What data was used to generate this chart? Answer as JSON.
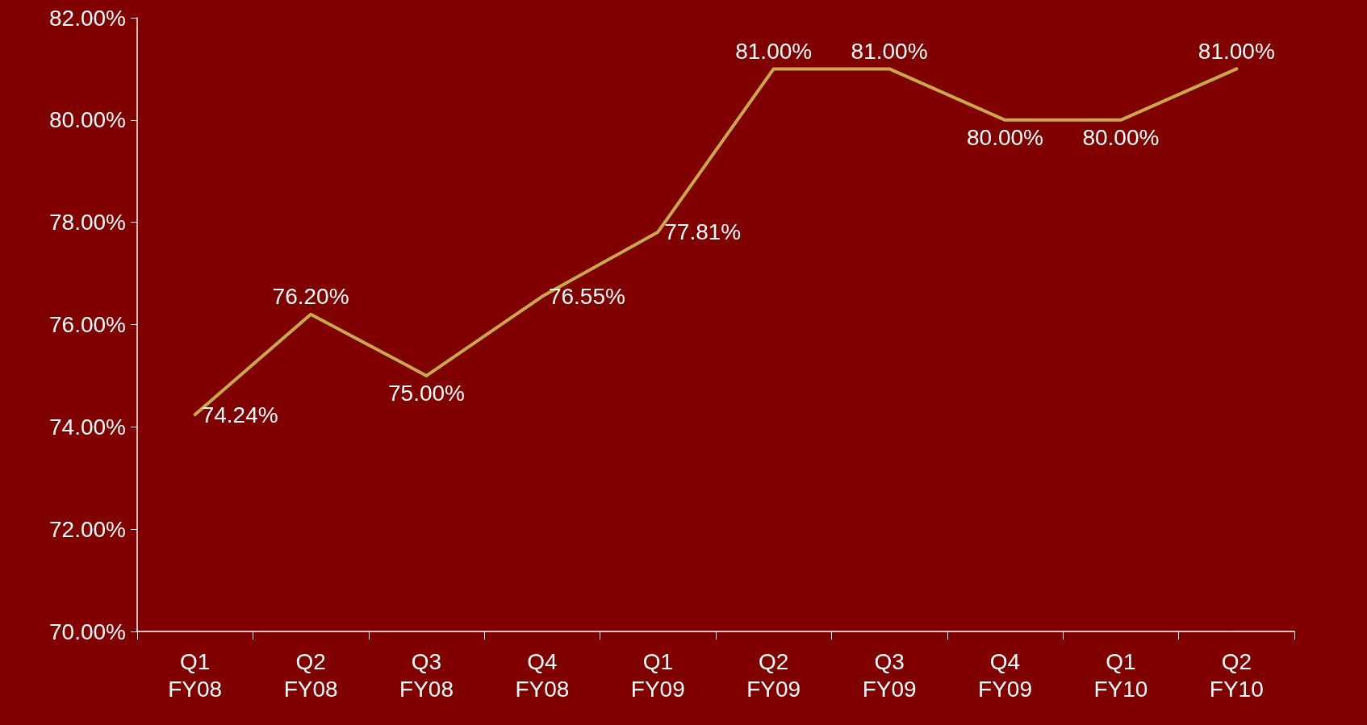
{
  "chart_data": {
    "type": "line",
    "categories": [
      "Q1\nFY08",
      "Q2\nFY08",
      "Q3\nFY08",
      "Q4\nFY08",
      "Q1\nFY09",
      "Q2\nFY09",
      "Q3\nFY09",
      "Q4\nFY09",
      "Q1\nFY10",
      "Q2\nFY10"
    ],
    "series": [
      {
        "color": "#c9a94a",
        "values": [
          74.24,
          76.2,
          75.0,
          76.55,
          77.81,
          81.0,
          81.0,
          80.0,
          80.0,
          81.0
        ],
        "value_labels": [
          "74.24%",
          "76.20%",
          "75.00%",
          "76.55%",
          "77.81%",
          "81.00%",
          "81.00%",
          "80.00%",
          "80.00%",
          "81.00%"
        ]
      }
    ],
    "ylim": [
      70,
      82
    ],
    "yticks": [
      {
        "value": 70,
        "label": "70.00%"
      },
      {
        "value": 72,
        "label": "72.00%"
      },
      {
        "value": 74,
        "label": "74.00%"
      },
      {
        "value": 76,
        "label": "76.00%"
      },
      {
        "value": 78,
        "label": "78.00%"
      },
      {
        "value": 80,
        "label": "80.00%"
      },
      {
        "value": 82,
        "label": "82.00%"
      }
    ],
    "grid": false,
    "marker": "none",
    "line_style": "solid"
  }
}
